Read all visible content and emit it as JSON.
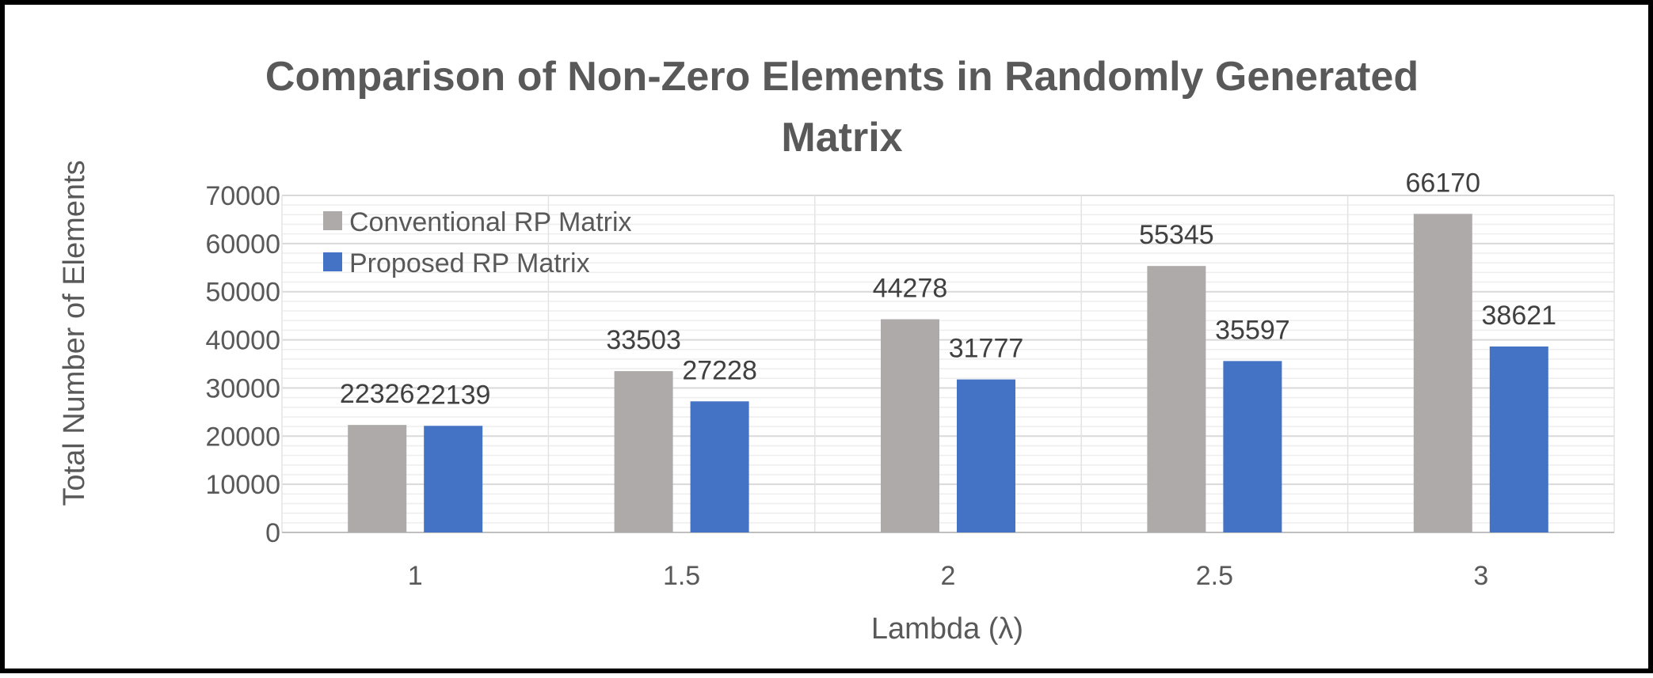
{
  "chart_data": {
    "type": "bar",
    "title_lines": [
      "Comparison  of Non-Zero Elements in Randomly Generated",
      "Matrix"
    ],
    "xlabel": "Lambda (λ)",
    "ylabel": "Total Number of Elements",
    "categories": [
      "1",
      "1.5",
      "2",
      "2.5",
      "3"
    ],
    "ylim": [
      0,
      70000
    ],
    "yticks": [
      "0",
      "10000",
      "20000",
      "30000",
      "40000",
      "50000",
      "60000",
      "70000"
    ],
    "series": [
      {
        "name": "Conventional RP Matrix",
        "color": "#aeaaaa",
        "values": [
          22326,
          33503,
          44278,
          55345,
          66170
        ]
      },
      {
        "name": "Proposed RP Matrix",
        "color": "#4472c4",
        "values": [
          22139,
          27228,
          31777,
          35597,
          38621
        ]
      }
    ],
    "legend_position": "top-left",
    "grid": true,
    "data_labels": true
  }
}
